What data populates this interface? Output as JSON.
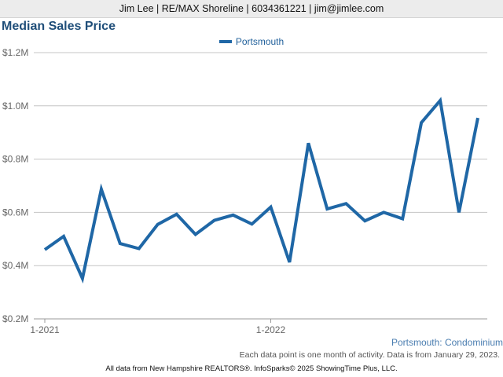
{
  "header": {
    "contact": "Jim Lee | RE/MAX Shoreline | 6034361221 | jim@jimlee.com"
  },
  "chart_data": {
    "type": "line",
    "title": "Median Sales Price",
    "series": [
      {
        "name": "Portsmouth",
        "color": "#1f67a6",
        "values": [
          460000,
          510000,
          352000,
          687000,
          483000,
          464000,
          555000,
          593000,
          517000,
          570000,
          590000,
          556000,
          620000,
          413000,
          860000,
          613000,
          633000,
          568000,
          600000,
          576000,
          937000,
          1020000,
          600000,
          955000
        ]
      }
    ],
    "x": [
      "2021-01",
      "2021-02",
      "2021-03",
      "2021-04",
      "2021-05",
      "2021-06",
      "2021-07",
      "2021-08",
      "2021-09",
      "2021-10",
      "2021-11",
      "2021-12",
      "2022-01",
      "2022-02",
      "2022-03",
      "2022-04",
      "2022-05",
      "2022-06",
      "2022-07",
      "2022-08",
      "2022-09",
      "2022-10",
      "2022-11",
      "2022-12"
    ],
    "x_tick_labels": [
      {
        "at": "2021-01",
        "label": "1-2021"
      },
      {
        "at": "2022-01",
        "label": "1-2022"
      }
    ],
    "y_ticks": [
      {
        "value": 200000,
        "label": "$0.2M"
      },
      {
        "value": 400000,
        "label": "$0.4M"
      },
      {
        "value": 600000,
        "label": "$0.6M"
      },
      {
        "value": 800000,
        "label": "$0.8M"
      },
      {
        "value": 1000000,
        "label": "$1.0M"
      },
      {
        "value": 1200000,
        "label": "$1.2M"
      }
    ],
    "ylim": [
      200000,
      1200000
    ],
    "grid": true,
    "legend_position": "top-center",
    "subtitle": "Portsmouth: Condominium",
    "note": "Each data point is one month of activity. Data is from January 29, 2023."
  },
  "footer": {
    "text": "All data from New Hampshire REALTORS®. InfoSparks© 2025 ShowingTime Plus, LLC."
  }
}
